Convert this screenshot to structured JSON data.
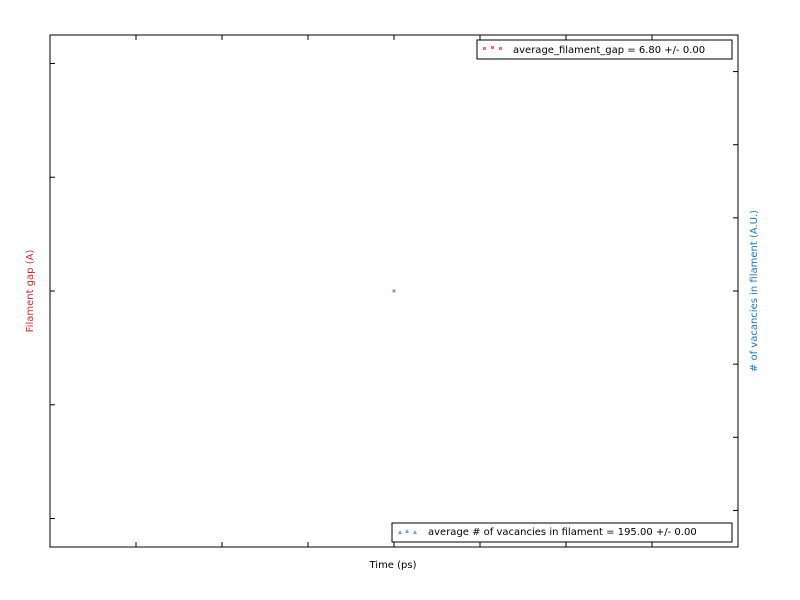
{
  "chart_data": {
    "type": "scatter",
    "xlabel": "Time (ps)",
    "ylabel_left": "Filament gap (A)",
    "ylabel_right": "# of vacancies in filament (A.U.)",
    "grid": false,
    "series": [
      {
        "name": "average_filament_gap = 6.80 +/- 0.00",
        "axis": "left",
        "marker": "square",
        "color": "#ff0000",
        "points": [
          {
            "x": 0,
            "y": 6.8
          }
        ],
        "legend_position": "top-right"
      },
      {
        "name": "average # of vacancies in filament = 195.00 +/- 0.00",
        "axis": "right",
        "marker": "triangle",
        "color": "#1f77b4",
        "points": [
          {
            "x": 0,
            "y": 195.0
          }
        ],
        "legend_position": "bottom-right"
      }
    ],
    "xlim": [
      -0.04,
      0.04
    ],
    "ylim_left": [
      6.7775,
      6.8225
    ],
    "ylim_right": [
      194.3,
      195.7
    ]
  }
}
